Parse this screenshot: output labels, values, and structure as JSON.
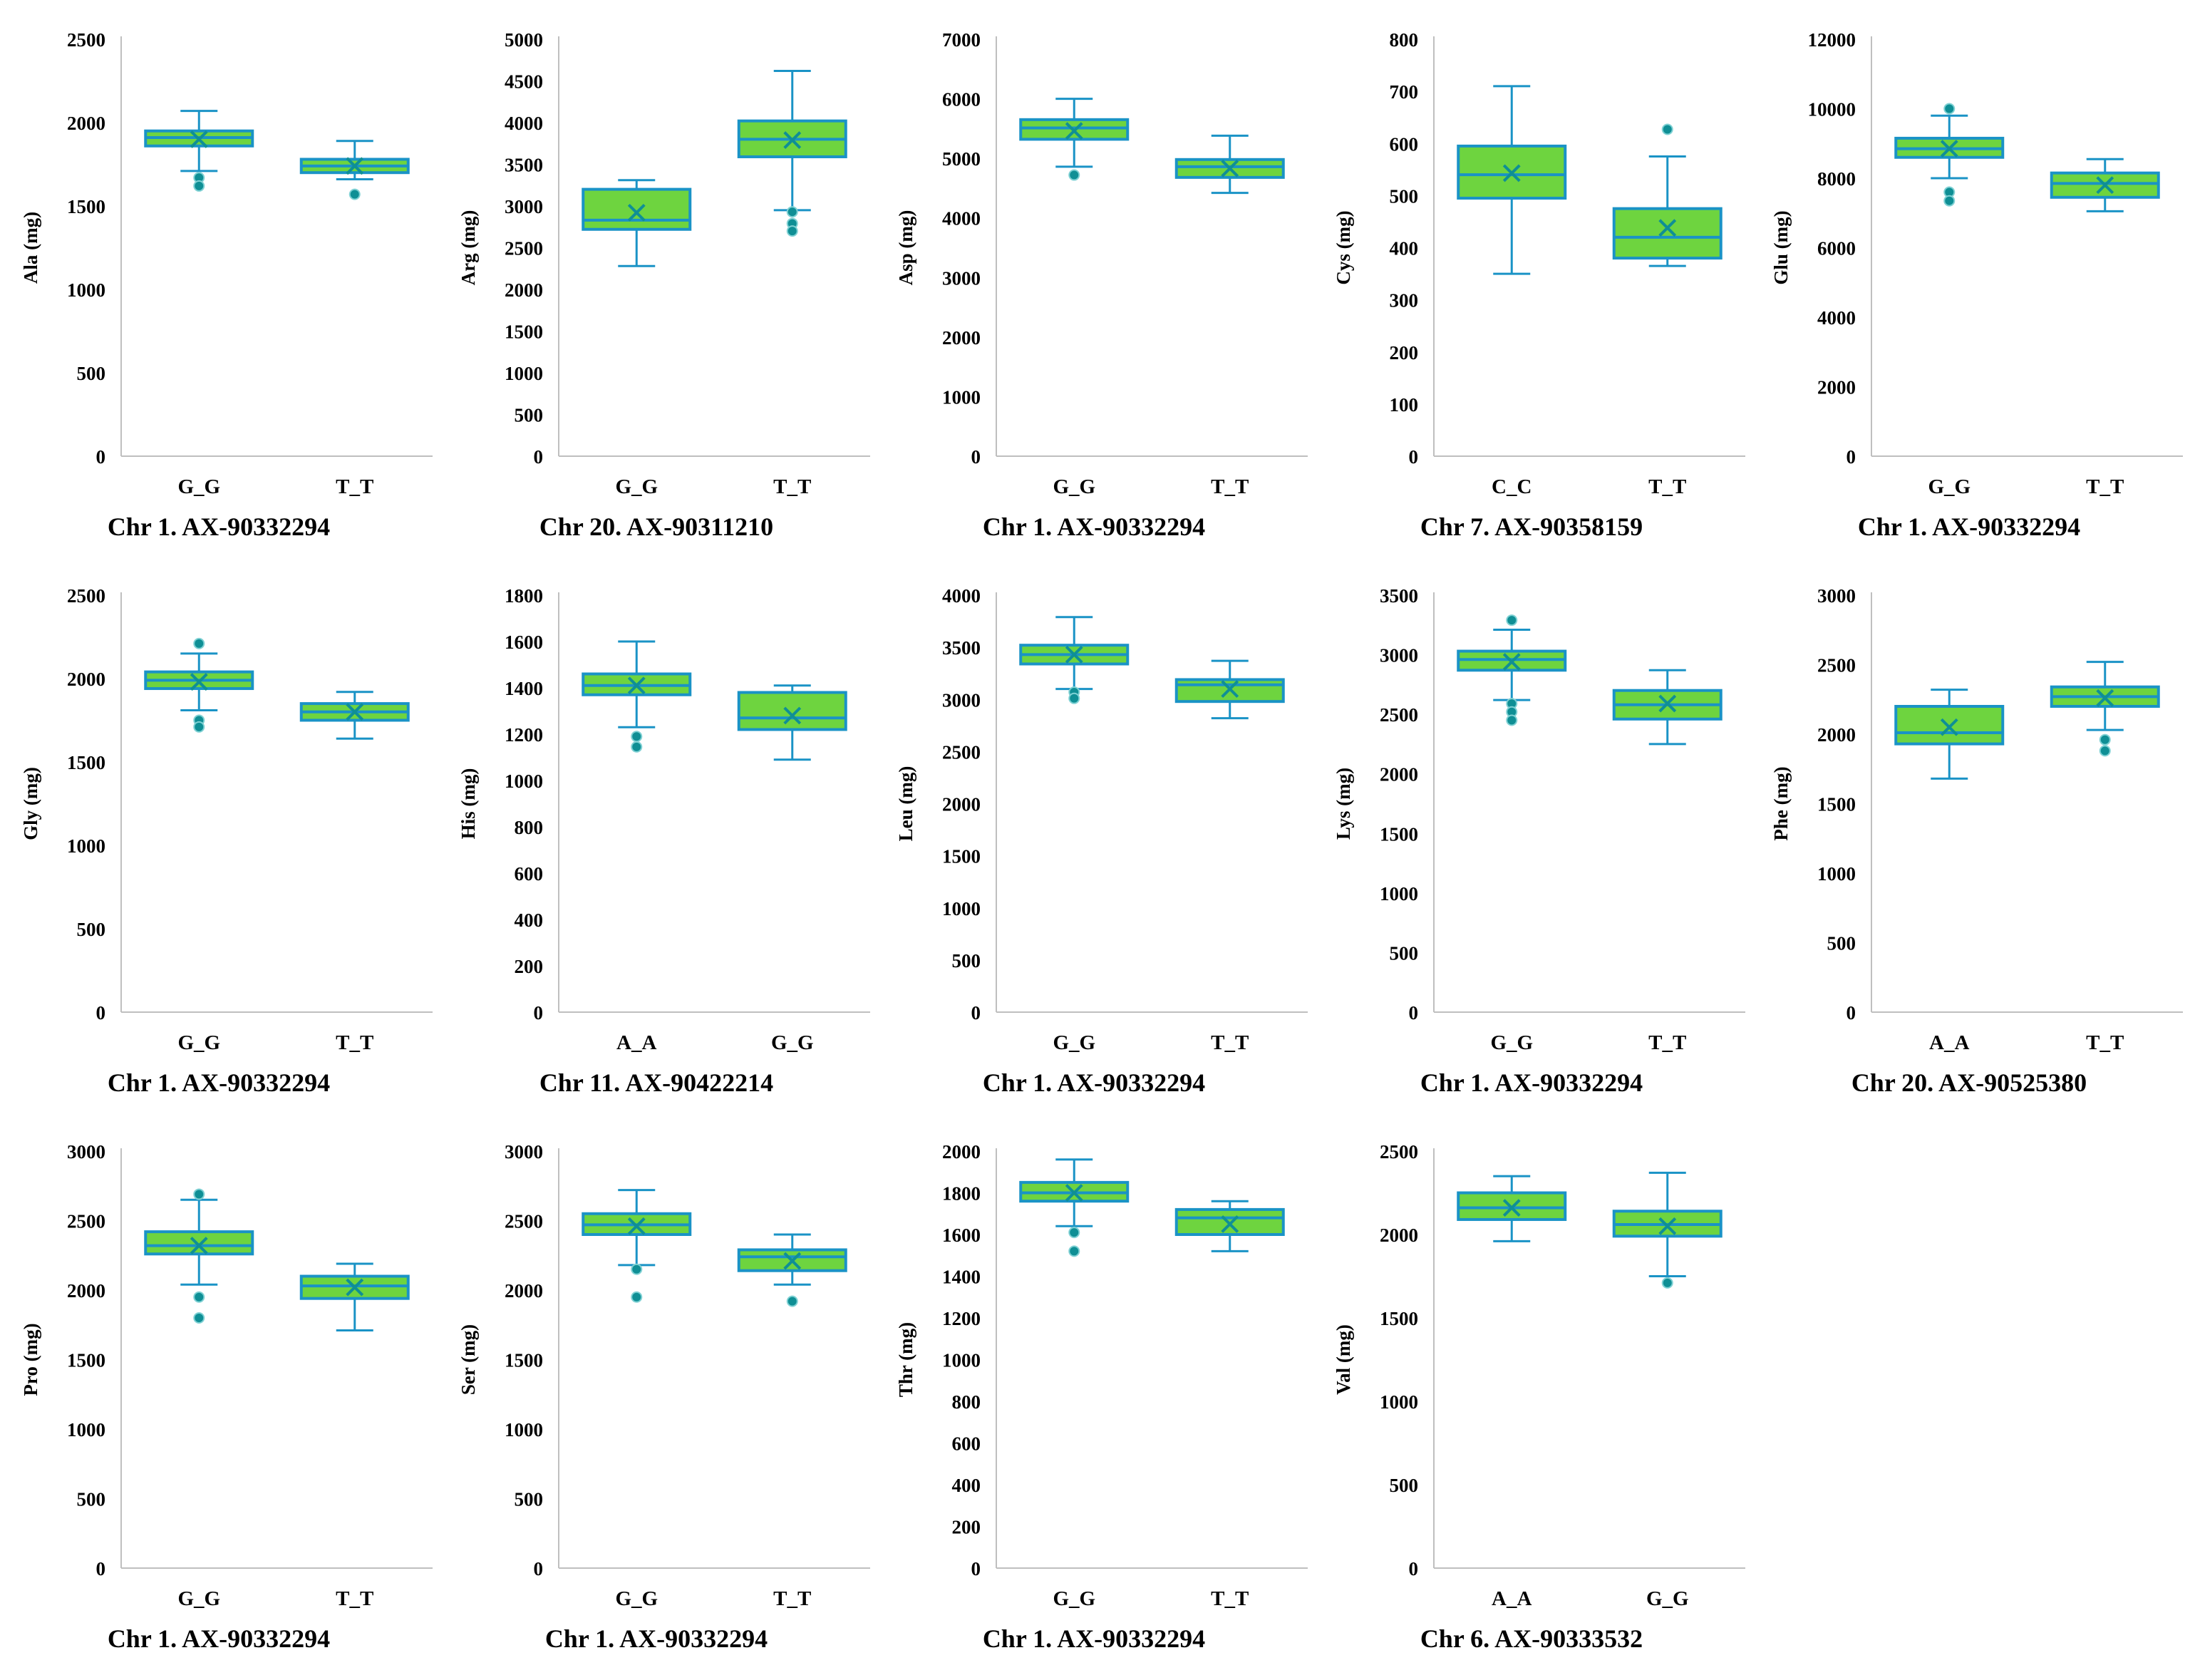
{
  "colors": {
    "box_fill": "#6ed43f",
    "box_stroke": "#1a93c6",
    "mean_marker": "#0f8f95",
    "outlier": "#0f8f95",
    "axis": "#bfbfbf"
  },
  "chart_data": [
    {
      "type": "box",
      "title": "Chr 1. AX-90332294",
      "ylabel": "Ala (mg)",
      "ylim": [
        0,
        2500
      ],
      "yticks": [
        0,
        500,
        1000,
        1500,
        2000,
        2500
      ],
      "categories": [
        "G_G",
        "T_T"
      ],
      "boxes": [
        {
          "min": 1710,
          "q1": 1860,
          "median": 1910,
          "q3": 1950,
          "max": 2070,
          "mean": 1900,
          "outliers": [
            1670,
            1620
          ]
        },
        {
          "min": 1660,
          "q1": 1700,
          "median": 1740,
          "q3": 1780,
          "max": 1890,
          "mean": 1740,
          "outliers": [
            1570
          ]
        }
      ]
    },
    {
      "type": "box",
      "title": "Chr 20. AX-90311210",
      "ylabel": "Arg (mg)",
      "ylim": [
        0,
        5000
      ],
      "yticks": [
        0,
        500,
        1000,
        1500,
        2000,
        2500,
        3000,
        3500,
        4000,
        4500,
        5000
      ],
      "categories": [
        "G_G",
        "T_T"
      ],
      "boxes": [
        {
          "min": 2280,
          "q1": 2720,
          "median": 2830,
          "q3": 3200,
          "max": 3310,
          "mean": 2920,
          "outliers": []
        },
        {
          "min": 2950,
          "q1": 3590,
          "median": 3800,
          "q3": 4020,
          "max": 4620,
          "mean": 3790,
          "outliers": [
            2930,
            2790,
            2700
          ]
        }
      ]
    },
    {
      "type": "box",
      "title": "Chr 1. AX-90332294",
      "ylabel": "Asp (mg)",
      "ylim": [
        0,
        7000
      ],
      "yticks": [
        0,
        1000,
        2000,
        3000,
        4000,
        5000,
        6000,
        7000
      ],
      "categories": [
        "G_G",
        "T_T"
      ],
      "boxes": [
        {
          "min": 4860,
          "q1": 5320,
          "median": 5510,
          "q3": 5650,
          "max": 6000,
          "mean": 5460,
          "outliers": [
            4720
          ]
        },
        {
          "min": 4420,
          "q1": 4680,
          "median": 4860,
          "q3": 4980,
          "max": 5380,
          "mean": 4830,
          "outliers": []
        }
      ]
    },
    {
      "type": "box",
      "title": "Chr 7. AX-90358159",
      "ylabel": "Cys (mg)",
      "ylim": [
        0,
        800
      ],
      "yticks": [
        0,
        100,
        200,
        300,
        400,
        500,
        600,
        700,
        800
      ],
      "categories": [
        "C_C",
        "T_T"
      ],
      "boxes": [
        {
          "min": 350,
          "q1": 495,
          "median": 540,
          "q3": 595,
          "max": 710,
          "mean": 543,
          "outliers": []
        },
        {
          "min": 365,
          "q1": 380,
          "median": 420,
          "q3": 475,
          "max": 575,
          "mean": 438,
          "outliers": [
            627
          ]
        }
      ]
    },
    {
      "type": "box",
      "title": "Chr 1. AX-90332294",
      "ylabel": "Glu (mg)",
      "ylim": [
        0,
        12000
      ],
      "yticks": [
        0,
        2000,
        4000,
        6000,
        8000,
        10000,
        12000
      ],
      "categories": [
        "G_G",
        "T_T"
      ],
      "boxes": [
        {
          "min": 8000,
          "q1": 8600,
          "median": 8850,
          "q3": 9150,
          "max": 9800,
          "mean": 8850,
          "outliers": [
            10000,
            7600,
            7350
          ]
        },
        {
          "min": 7050,
          "q1": 7450,
          "median": 7850,
          "q3": 8150,
          "max": 8550,
          "mean": 7800,
          "outliers": []
        }
      ]
    },
    {
      "type": "box",
      "title": "Chr 1. AX-90332294",
      "ylabel": "Gly (mg)",
      "ylim": [
        0,
        2500
      ],
      "yticks": [
        0,
        500,
        1000,
        1500,
        2000,
        2500
      ],
      "categories": [
        "G_G",
        "T_T"
      ],
      "boxes": [
        {
          "min": 1810,
          "q1": 1940,
          "median": 1990,
          "q3": 2040,
          "max": 2150,
          "mean": 1980,
          "outliers": [
            2210,
            1750,
            1710
          ]
        },
        {
          "min": 1640,
          "q1": 1750,
          "median": 1800,
          "q3": 1850,
          "max": 1920,
          "mean": 1800,
          "outliers": []
        }
      ]
    },
    {
      "type": "box",
      "title": "Chr 11. AX-90422214",
      "ylabel": "His (mg)",
      "ylim": [
        0,
        1800
      ],
      "yticks": [
        0,
        200,
        400,
        600,
        800,
        1000,
        1200,
        1400,
        1600,
        1800
      ],
      "categories": [
        "A_A",
        "G_G"
      ],
      "boxes": [
        {
          "min": 1230,
          "q1": 1370,
          "median": 1410,
          "q3": 1460,
          "max": 1600,
          "mean": 1410,
          "outliers": [
            1190,
            1145
          ]
        },
        {
          "min": 1090,
          "q1": 1220,
          "median": 1270,
          "q3": 1380,
          "max": 1410,
          "mean": 1280,
          "outliers": []
        }
      ]
    },
    {
      "type": "box",
      "title": "Chr 1. AX-90332294",
      "ylabel": "Leu (mg)",
      "ylim": [
        0,
        4000
      ],
      "yticks": [
        0,
        500,
        1000,
        1500,
        2000,
        2500,
        3000,
        3500,
        4000
      ],
      "categories": [
        "G_G",
        "T_T"
      ],
      "boxes": [
        {
          "min": 3100,
          "q1": 3340,
          "median": 3430,
          "q3": 3520,
          "max": 3790,
          "mean": 3430,
          "outliers": [
            3070,
            3010
          ]
        },
        {
          "min": 2820,
          "q1": 2980,
          "median": 3140,
          "q3": 3190,
          "max": 3370,
          "mean": 3100,
          "outliers": []
        }
      ]
    },
    {
      "type": "box",
      "title": "Chr 1. AX-90332294",
      "ylabel": "Lys (mg)",
      "ylim": [
        0,
        3500
      ],
      "yticks": [
        0,
        500,
        1000,
        1500,
        2000,
        2500,
        3000,
        3500
      ],
      "categories": [
        "G_G",
        "T_T"
      ],
      "boxes": [
        {
          "min": 2620,
          "q1": 2870,
          "median": 2960,
          "q3": 3030,
          "max": 3210,
          "mean": 2940,
          "outliers": [
            3290,
            2590,
            2520,
            2450
          ]
        },
        {
          "min": 2250,
          "q1": 2460,
          "median": 2580,
          "q3": 2700,
          "max": 2870,
          "mean": 2590,
          "outliers": []
        }
      ]
    },
    {
      "type": "box",
      "title": "Chr 20. AX-90525380",
      "ylabel": "Phe (mg)",
      "ylim": [
        0,
        3000
      ],
      "yticks": [
        0,
        500,
        1000,
        1500,
        2000,
        2500,
        3000
      ],
      "categories": [
        "A_A",
        "T_T"
      ],
      "boxes": [
        {
          "min": 1680,
          "q1": 1930,
          "median": 2010,
          "q3": 2200,
          "max": 2320,
          "mean": 2050,
          "outliers": []
        },
        {
          "min": 2030,
          "q1": 2200,
          "median": 2270,
          "q3": 2340,
          "max": 2520,
          "mean": 2260,
          "outliers": [
            1960,
            1880
          ]
        }
      ]
    },
    {
      "type": "box",
      "title": "Chr 1. AX-90332294",
      "ylabel": "Pro (mg)",
      "ylim": [
        0,
        3000
      ],
      "yticks": [
        0,
        500,
        1000,
        1500,
        2000,
        2500,
        3000
      ],
      "categories": [
        "G_G",
        "T_T"
      ],
      "boxes": [
        {
          "min": 2040,
          "q1": 2260,
          "median": 2320,
          "q3": 2420,
          "max": 2650,
          "mean": 2320,
          "outliers": [
            2690,
            1950,
            1800
          ]
        },
        {
          "min": 1710,
          "q1": 1940,
          "median": 2030,
          "q3": 2100,
          "max": 2190,
          "mean": 2020,
          "outliers": []
        }
      ]
    },
    {
      "type": "box",
      "title": "Chr 1. AX-90332294",
      "ylabel": "Ser (mg)",
      "ylim": [
        0,
        3000
      ],
      "yticks": [
        0,
        500,
        1000,
        1500,
        2000,
        2500,
        3000
      ],
      "categories": [
        "G_G",
        "T_T"
      ],
      "boxes": [
        {
          "min": 2180,
          "q1": 2400,
          "median": 2470,
          "q3": 2550,
          "max": 2720,
          "mean": 2460,
          "outliers": [
            2150,
            1950
          ]
        },
        {
          "min": 2040,
          "q1": 2140,
          "median": 2240,
          "q3": 2290,
          "max": 2400,
          "mean": 2210,
          "outliers": [
            1920
          ]
        }
      ]
    },
    {
      "type": "box",
      "title": "Chr 1. AX-90332294",
      "ylabel": "Thr (mg)",
      "ylim": [
        0,
        2000
      ],
      "yticks": [
        0,
        200,
        400,
        600,
        800,
        1000,
        1200,
        1400,
        1600,
        1800,
        2000
      ],
      "categories": [
        "G_G",
        "T_T"
      ],
      "boxes": [
        {
          "min": 1640,
          "q1": 1760,
          "median": 1800,
          "q3": 1850,
          "max": 1960,
          "mean": 1800,
          "outliers": [
            1610,
            1520
          ]
        },
        {
          "min": 1520,
          "q1": 1600,
          "median": 1680,
          "q3": 1720,
          "max": 1760,
          "mean": 1650,
          "outliers": []
        }
      ]
    },
    {
      "type": "box",
      "title": "Chr 6. AX-90333532",
      "ylabel": "Val (mg)",
      "ylim": [
        0,
        2500
      ],
      "yticks": [
        0,
        500,
        1000,
        1500,
        2000,
        2500
      ],
      "categories": [
        "A_A",
        "G_G"
      ],
      "boxes": [
        {
          "min": 1960,
          "q1": 2090,
          "median": 2160,
          "q3": 2250,
          "max": 2350,
          "mean": 2160,
          "outliers": []
        },
        {
          "min": 1750,
          "q1": 1990,
          "median": 2060,
          "q3": 2140,
          "max": 2370,
          "mean": 2050,
          "outliers": [
            1710
          ]
        }
      ]
    }
  ]
}
